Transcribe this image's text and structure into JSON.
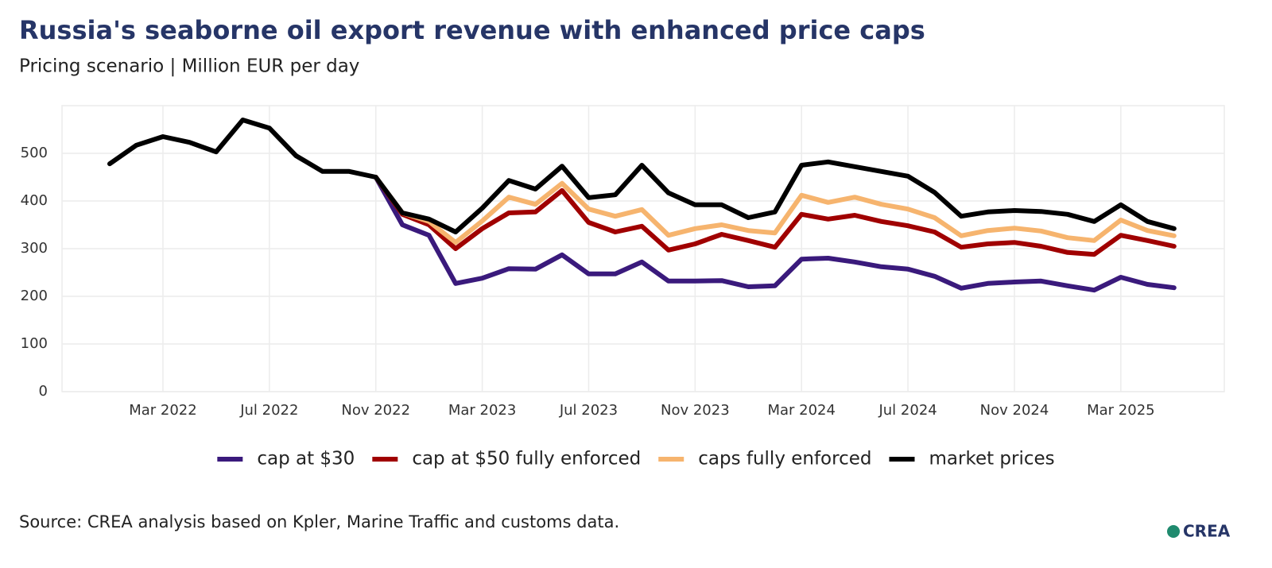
{
  "chart_data": {
    "type": "line",
    "title": "Russia's seaborne oil export revenue with enhanced price caps",
    "subtitle": "Pricing scenario | Million EUR per day",
    "source": "Source: CREA analysis based on Kpler, Marine Traffic and customs data.",
    "logo": "CREA",
    "categories": [
      null,
      null,
      "Mar 2022",
      null,
      null,
      null,
      "Jul 2022",
      null,
      null,
      null,
      "Nov 2022",
      null,
      null,
      null,
      "Mar 2023",
      null,
      null,
      null,
      "Jul 2023",
      null,
      null,
      null,
      "Nov 2023",
      null,
      null,
      null,
      "Mar 2024",
      null,
      null,
      null,
      "Jul 2024",
      null,
      null,
      null,
      "Nov 2024",
      null,
      null,
      null,
      "Mar 2025",
      null,
      null
    ],
    "ylim": [
      0,
      600
    ],
    "yticks": [
      0,
      100,
      200,
      300,
      400,
      500
    ],
    "grid": true,
    "legend": "bottom",
    "series": [
      {
        "name": "cap at $30",
        "color": "#3a1a7c",
        "values": [
          null,
          null,
          null,
          null,
          null,
          null,
          null,
          null,
          null,
          null,
          450,
          350,
          328,
          227,
          238,
          258,
          257,
          287,
          247,
          247,
          272,
          232,
          232,
          233,
          220,
          222,
          278,
          280,
          272,
          262,
          257,
          242,
          217,
          227,
          230,
          232,
          222,
          213,
          240,
          225,
          218
        ]
      },
      {
        "name": "cap at $50 fully enforced",
        "color": "#a00000",
        "values": [
          null,
          null,
          null,
          null,
          null,
          null,
          null,
          null,
          null,
          null,
          450,
          372,
          350,
          300,
          342,
          375,
          377,
          422,
          355,
          335,
          347,
          297,
          310,
          330,
          317,
          303,
          372,
          362,
          370,
          357,
          348,
          335,
          303,
          310,
          313,
          305,
          292,
          288,
          328,
          317,
          305
        ]
      },
      {
        "name": "caps fully enforced",
        "color": "#f6b46e",
        "values": [
          null,
          null,
          null,
          null,
          null,
          null,
          null,
          null,
          null,
          null,
          450,
          375,
          357,
          313,
          358,
          408,
          393,
          437,
          383,
          368,
          382,
          328,
          342,
          350,
          338,
          333,
          412,
          397,
          408,
          393,
          383,
          365,
          327,
          338,
          343,
          337,
          323,
          317,
          360,
          338,
          327
        ]
      },
      {
        "name": "market prices",
        "color": "#000000",
        "values": [
          478,
          517,
          535,
          523,
          503,
          570,
          553,
          495,
          462,
          462,
          450,
          375,
          362,
          335,
          385,
          443,
          425,
          473,
          407,
          413,
          475,
          417,
          392,
          392,
          365,
          377,
          475,
          482,
          472,
          462,
          452,
          418,
          368,
          377,
          380,
          378,
          372,
          357,
          392,
          357,
          342
        ]
      }
    ]
  }
}
